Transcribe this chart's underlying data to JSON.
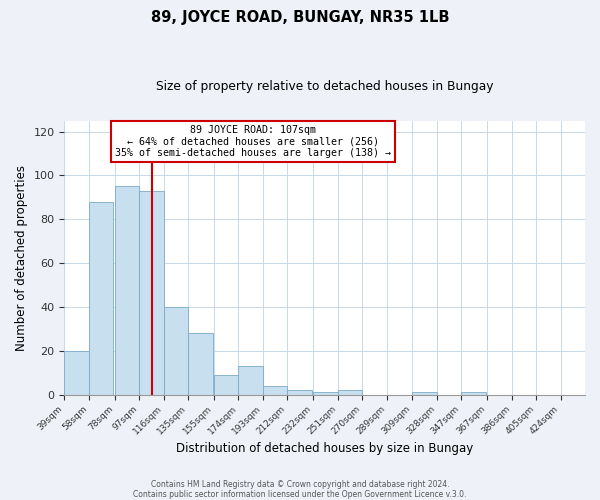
{
  "title": "89, JOYCE ROAD, BUNGAY, NR35 1LB",
  "subtitle": "Size of property relative to detached houses in Bungay",
  "xlabel": "Distribution of detached houses by size in Bungay",
  "ylabel": "Number of detached properties",
  "bar_values": [
    20,
    88,
    95,
    93,
    40,
    28,
    9,
    13,
    4,
    2,
    1,
    2,
    0,
    0,
    1,
    0,
    1,
    0,
    0,
    0,
    0
  ],
  "bin_labels": [
    "39sqm",
    "58sqm",
    "78sqm",
    "97sqm",
    "116sqm",
    "135sqm",
    "155sqm",
    "174sqm",
    "193sqm",
    "212sqm",
    "232sqm",
    "251sqm",
    "270sqm",
    "289sqm",
    "309sqm",
    "328sqm",
    "347sqm",
    "367sqm",
    "386sqm",
    "405sqm",
    "424sqm"
  ],
  "bar_color": "#c8dff0",
  "bar_edge_color": "#7baac8",
  "vline_x": 107,
  "vline_color": "#cc0000",
  "annotation_title": "89 JOYCE ROAD: 107sqm",
  "annotation_line1": "← 64% of detached houses are smaller (256)",
  "annotation_line2": "35% of semi-detached houses are larger (138) →",
  "annotation_box_color": "#cc0000",
  "ylim": [
    0,
    125
  ],
  "yticks": [
    0,
    20,
    40,
    60,
    80,
    100,
    120
  ],
  "bin_edges": [
    39,
    58,
    78,
    97,
    116,
    135,
    155,
    174,
    193,
    212,
    232,
    251,
    270,
    289,
    309,
    328,
    347,
    367,
    386,
    405,
    424
  ],
  "bin_width": 19,
  "footer1": "Contains HM Land Registry data © Crown copyright and database right 2024.",
  "footer2": "Contains public sector information licensed under the Open Government Licence v.3.0.",
  "bg_color": "#eef2f8",
  "plot_bg_color": "#ffffff"
}
